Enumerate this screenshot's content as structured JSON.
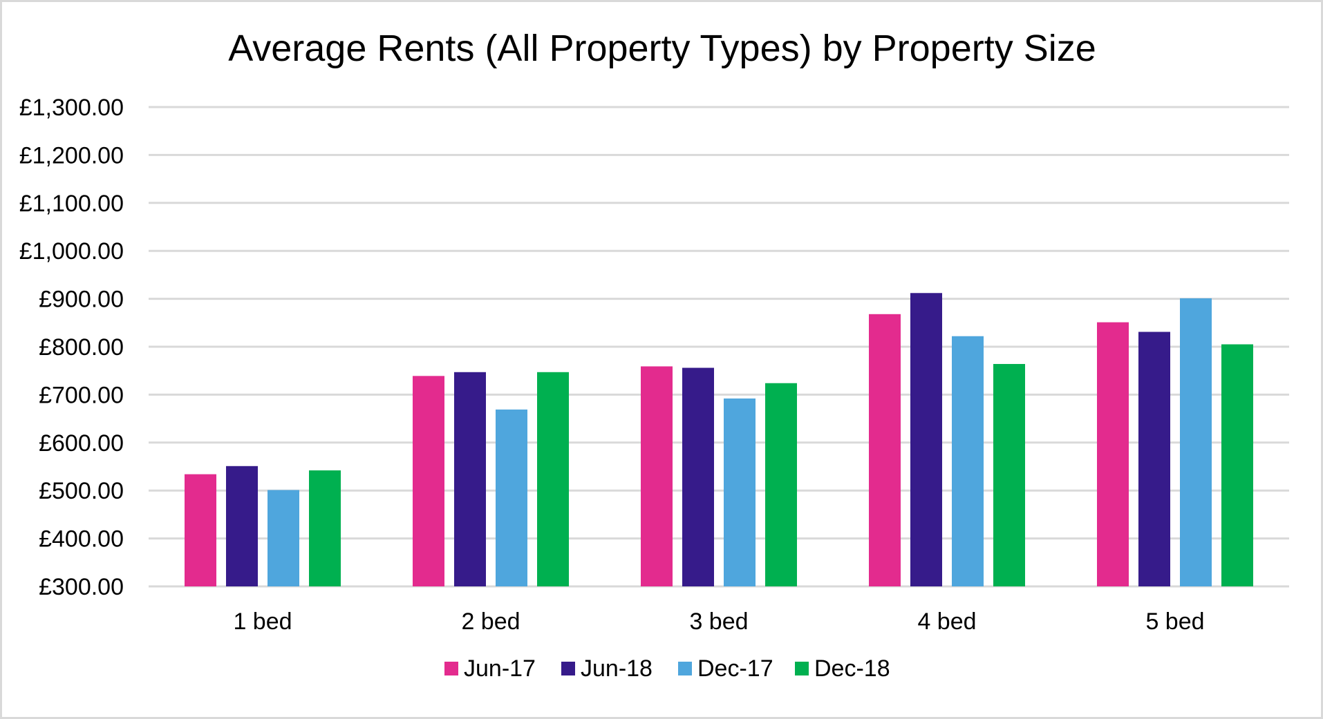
{
  "chart_data": {
    "type": "bar",
    "title": "Average Rents (All Property Types) by Property Size",
    "categories": [
      "1 bed",
      "2 bed",
      "3 bed",
      "4 bed",
      "5 bed"
    ],
    "series": [
      {
        "name": "Jun-17",
        "color": "#e32b8e",
        "values": [
          534,
          739,
          759,
          868,
          851
        ]
      },
      {
        "name": "Jun-18",
        "color": "#361b8a",
        "values": [
          551,
          747,
          756,
          912,
          831
        ]
      },
      {
        "name": "Dec-17",
        "color": "#4fa6dd",
        "values": [
          501,
          669,
          692,
          822,
          901
        ]
      },
      {
        "name": "Dec-18",
        "color": "#00b050",
        "values": [
          542,
          747,
          724,
          764,
          805
        ]
      }
    ],
    "ylim": [
      300,
      1300
    ],
    "yticks": [
      300,
      400,
      500,
      600,
      700,
      800,
      900,
      1000,
      1100,
      1200,
      1300
    ],
    "ytick_labels": [
      "£300.00",
      "£400.00",
      "£500.00",
      "£600.00",
      "£700.00",
      "£800.00",
      "£900.00",
      "£1,000.00",
      "£1,100.00",
      "£1,200.00",
      "£1,300.00"
    ],
    "grid": true,
    "legend_position": "bottom"
  }
}
